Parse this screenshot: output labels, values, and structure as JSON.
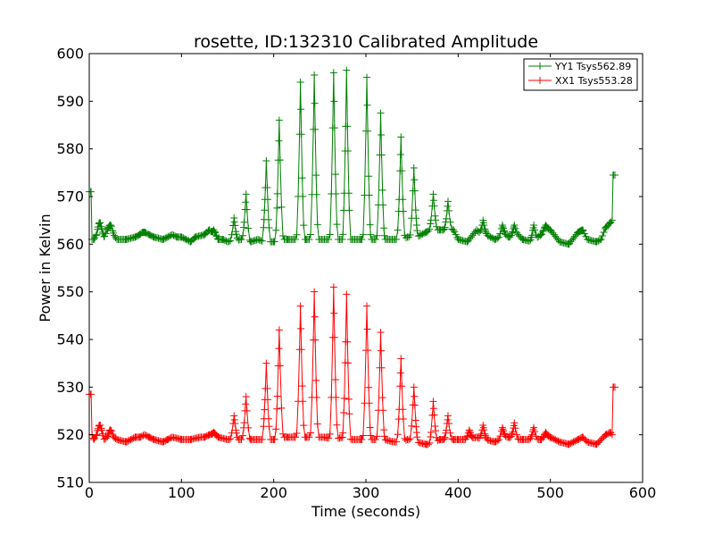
{
  "chart_data": {
    "type": "line",
    "title": "rosette, ID:132310 Calibrated Amplitude",
    "xlabel": "Time (seconds)",
    "ylabel": "Power in Kelvin",
    "xlim": [
      0,
      600
    ],
    "ylim": [
      510,
      600
    ],
    "xticks": [
      0,
      100,
      200,
      300,
      400,
      500,
      600
    ],
    "yticks": [
      510,
      520,
      530,
      540,
      550,
      560,
      570,
      580,
      590,
      600
    ],
    "x_tick_labels": [
      "0",
      "100",
      "200",
      "300",
      "400",
      "500",
      "600"
    ],
    "y_tick_labels": [
      "510",
      "520",
      "530",
      "540",
      "550",
      "560",
      "570",
      "580",
      "590",
      "600"
    ],
    "grid": false,
    "legend_position": "top-right",
    "marker": "plus",
    "series": [
      {
        "name": "YY1 Tsys562.89",
        "color": "#008000",
        "base": [
          [
            0,
            571
          ],
          [
            2,
            571
          ],
          [
            3,
            561
          ],
          [
            5,
            561
          ],
          [
            8,
            562
          ],
          [
            11,
            564.5
          ],
          [
            13,
            562
          ],
          [
            16,
            561.5
          ],
          [
            20,
            563
          ],
          [
            23,
            564
          ],
          [
            26,
            562
          ],
          [
            30,
            561
          ],
          [
            40,
            561
          ],
          [
            50,
            561.5
          ],
          [
            55,
            562
          ],
          [
            60,
            562.5
          ],
          [
            65,
            562
          ],
          [
            70,
            561.5
          ],
          [
            80,
            561
          ],
          [
            90,
            562
          ],
          [
            95,
            561.5
          ],
          [
            100,
            561.5
          ],
          [
            110,
            560.5
          ],
          [
            115,
            561.5
          ],
          [
            125,
            562
          ],
          [
            130,
            563
          ],
          [
            135,
            562
          ],
          [
            140,
            561
          ],
          [
            145,
            561
          ],
          [
            150,
            560.5
          ],
          [
            165,
            561
          ],
          [
            175,
            560.5
          ],
          [
            183,
            561
          ],
          [
            190,
            560.5
          ],
          [
            200,
            560.5
          ],
          [
            210,
            561
          ],
          [
            215,
            561
          ],
          [
            225,
            561
          ],
          [
            235,
            561
          ],
          [
            245,
            561
          ],
          [
            255,
            561
          ],
          [
            265,
            561
          ],
          [
            275,
            561
          ],
          [
            285,
            561
          ],
          [
            295,
            561
          ],
          [
            305,
            561
          ],
          [
            315,
            561
          ],
          [
            320,
            561
          ],
          [
            330,
            561
          ],
          [
            340,
            561
          ],
          [
            345,
            561.5
          ],
          [
            355,
            561.5
          ],
          [
            365,
            562.5
          ],
          [
            370,
            563
          ],
          [
            380,
            563
          ],
          [
            385,
            563
          ],
          [
            390,
            563
          ],
          [
            395,
            563
          ],
          [
            400,
            561
          ],
          [
            410,
            560.5
          ],
          [
            420,
            563
          ],
          [
            425,
            562
          ],
          [
            430,
            562
          ],
          [
            440,
            561
          ],
          [
            450,
            562
          ],
          [
            455,
            561.5
          ],
          [
            465,
            562
          ],
          [
            470,
            561
          ],
          [
            480,
            560.5
          ],
          [
            490,
            562
          ],
          [
            495,
            563
          ],
          [
            500,
            563
          ],
          [
            510,
            560.5
          ],
          [
            520,
            560
          ],
          [
            530,
            562.5
          ],
          [
            535,
            563
          ],
          [
            540,
            561
          ],
          [
            550,
            560.5
          ],
          [
            555,
            561
          ],
          [
            560,
            563.5
          ],
          [
            565,
            564.5
          ],
          [
            567,
            565
          ],
          [
            568,
            574.5
          ],
          [
            570,
            574.5
          ]
        ],
        "peaks": [
          [
            12,
            564.5
          ],
          [
            23,
            564
          ],
          [
            58,
            562.5
          ],
          [
            135,
            563
          ],
          [
            157,
            565.5
          ],
          [
            170,
            570.5
          ],
          [
            192,
            577.5
          ],
          [
            206,
            586
          ],
          [
            229,
            594
          ],
          [
            244,
            595.5
          ],
          [
            265,
            596
          ],
          [
            279,
            596.5
          ],
          [
            301,
            595
          ],
          [
            316,
            587.5
          ],
          [
            338,
            582.5
          ],
          [
            352,
            576
          ],
          [
            373,
            570.5
          ],
          [
            389,
            569
          ],
          [
            427,
            565
          ],
          [
            448,
            564
          ],
          [
            461,
            564
          ],
          [
            482,
            564
          ],
          [
            495,
            564
          ],
          [
            532,
            562.5
          ]
        ]
      },
      {
        "name": "XX1 Tsys553.28",
        "color": "#ff0000",
        "base": [
          [
            0,
            528.5
          ],
          [
            2,
            528.5
          ],
          [
            3,
            520
          ],
          [
            5,
            519
          ],
          [
            8,
            520
          ],
          [
            11,
            522
          ],
          [
            13,
            520
          ],
          [
            16,
            519
          ],
          [
            20,
            519.5
          ],
          [
            23,
            521
          ],
          [
            26,
            519.5
          ],
          [
            30,
            519
          ],
          [
            40,
            518.5
          ],
          [
            50,
            519.5
          ],
          [
            55,
            519.5
          ],
          [
            60,
            520
          ],
          [
            65,
            519.5
          ],
          [
            70,
            519
          ],
          [
            80,
            518.5
          ],
          [
            85,
            519
          ],
          [
            90,
            519.5
          ],
          [
            100,
            519
          ],
          [
            110,
            519
          ],
          [
            120,
            519.5
          ],
          [
            125,
            519.5
          ],
          [
            130,
            520
          ],
          [
            135,
            520
          ],
          [
            140,
            519.5
          ],
          [
            150,
            519
          ],
          [
            165,
            519
          ],
          [
            175,
            519
          ],
          [
            183,
            519
          ],
          [
            190,
            519
          ],
          [
            200,
            519
          ],
          [
            210,
            519.5
          ],
          [
            215,
            519.5
          ],
          [
            225,
            519.5
          ],
          [
            235,
            519.5
          ],
          [
            245,
            519.5
          ],
          [
            255,
            519.5
          ],
          [
            265,
            519
          ],
          [
            275,
            519.5
          ],
          [
            285,
            519
          ],
          [
            295,
            519
          ],
          [
            305,
            519
          ],
          [
            315,
            519
          ],
          [
            320,
            519
          ],
          [
            330,
            518.5
          ],
          [
            340,
            518.5
          ],
          [
            345,
            519
          ],
          [
            355,
            518.5
          ],
          [
            365,
            518
          ],
          [
            370,
            518
          ],
          [
            380,
            519
          ],
          [
            385,
            519
          ],
          [
            390,
            519
          ],
          [
            395,
            519
          ],
          [
            400,
            519
          ],
          [
            410,
            519
          ],
          [
            420,
            519.5
          ],
          [
            425,
            519
          ],
          [
            430,
            519
          ],
          [
            440,
            518.5
          ],
          [
            450,
            519.5
          ],
          [
            455,
            519.5
          ],
          [
            465,
            519
          ],
          [
            470,
            519
          ],
          [
            480,
            519
          ],
          [
            490,
            519
          ],
          [
            495,
            519.5
          ],
          [
            500,
            519.5
          ],
          [
            510,
            518.5
          ],
          [
            520,
            518
          ],
          [
            530,
            519
          ],
          [
            535,
            519.5
          ],
          [
            540,
            518.5
          ],
          [
            550,
            518
          ],
          [
            555,
            519
          ],
          [
            560,
            520
          ],
          [
            565,
            520.5
          ],
          [
            567,
            520
          ],
          [
            568,
            530
          ],
          [
            570,
            530
          ]
        ],
        "peaks": [
          [
            12,
            522
          ],
          [
            23,
            521
          ],
          [
            135,
            520.5
          ],
          [
            157,
            524
          ],
          [
            170,
            528
          ],
          [
            192,
            535
          ],
          [
            206,
            542
          ],
          [
            229,
            547
          ],
          [
            244,
            550
          ],
          [
            265,
            551
          ],
          [
            279,
            549.5
          ],
          [
            301,
            547
          ],
          [
            316,
            541.5
          ],
          [
            338,
            536
          ],
          [
            352,
            530
          ],
          [
            373,
            527
          ],
          [
            389,
            524
          ],
          [
            412,
            521
          ],
          [
            427,
            522
          ],
          [
            448,
            521.5
          ],
          [
            461,
            522.5
          ],
          [
            482,
            521.5
          ],
          [
            495,
            520.5
          ]
        ]
      }
    ]
  }
}
